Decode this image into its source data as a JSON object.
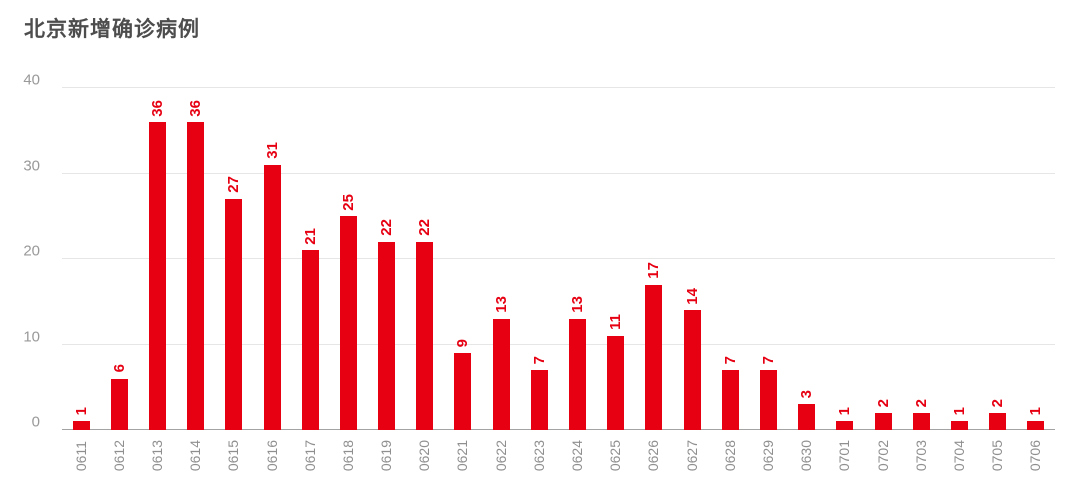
{
  "title": "北京新增确诊病例",
  "chart_data": {
    "type": "bar",
    "title": "北京新增确诊病例",
    "categories": [
      "0611",
      "0612",
      "0613",
      "0614",
      "0615",
      "0616",
      "0617",
      "0618",
      "0619",
      "0620",
      "0621",
      "0622",
      "0623",
      "0624",
      "0625",
      "0626",
      "0627",
      "0628",
      "0629",
      "0630",
      "0701",
      "0702",
      "0703",
      "0704",
      "0705",
      "0706"
    ],
    "values": [
      1,
      6,
      36,
      36,
      27,
      31,
      21,
      25,
      22,
      22,
      9,
      13,
      7,
      13,
      11,
      17,
      14,
      7,
      7,
      3,
      1,
      2,
      2,
      1,
      2,
      1
    ],
    "xlabel": "",
    "ylabel": "",
    "ylim": [
      0,
      40
    ],
    "yticks": [
      0,
      10,
      20,
      30,
      40
    ],
    "grid": true,
    "legend_position": "none",
    "bar_color": "#e60012",
    "value_label_color": "#e60012",
    "axis_text_color": "#999999",
    "x_text_color": "#8f8f8f",
    "grid_color": "#e6e6e6",
    "baseline_color": "#a3a3a3",
    "title_color": "#4d4d4d",
    "background_color": "#ffffff"
  }
}
